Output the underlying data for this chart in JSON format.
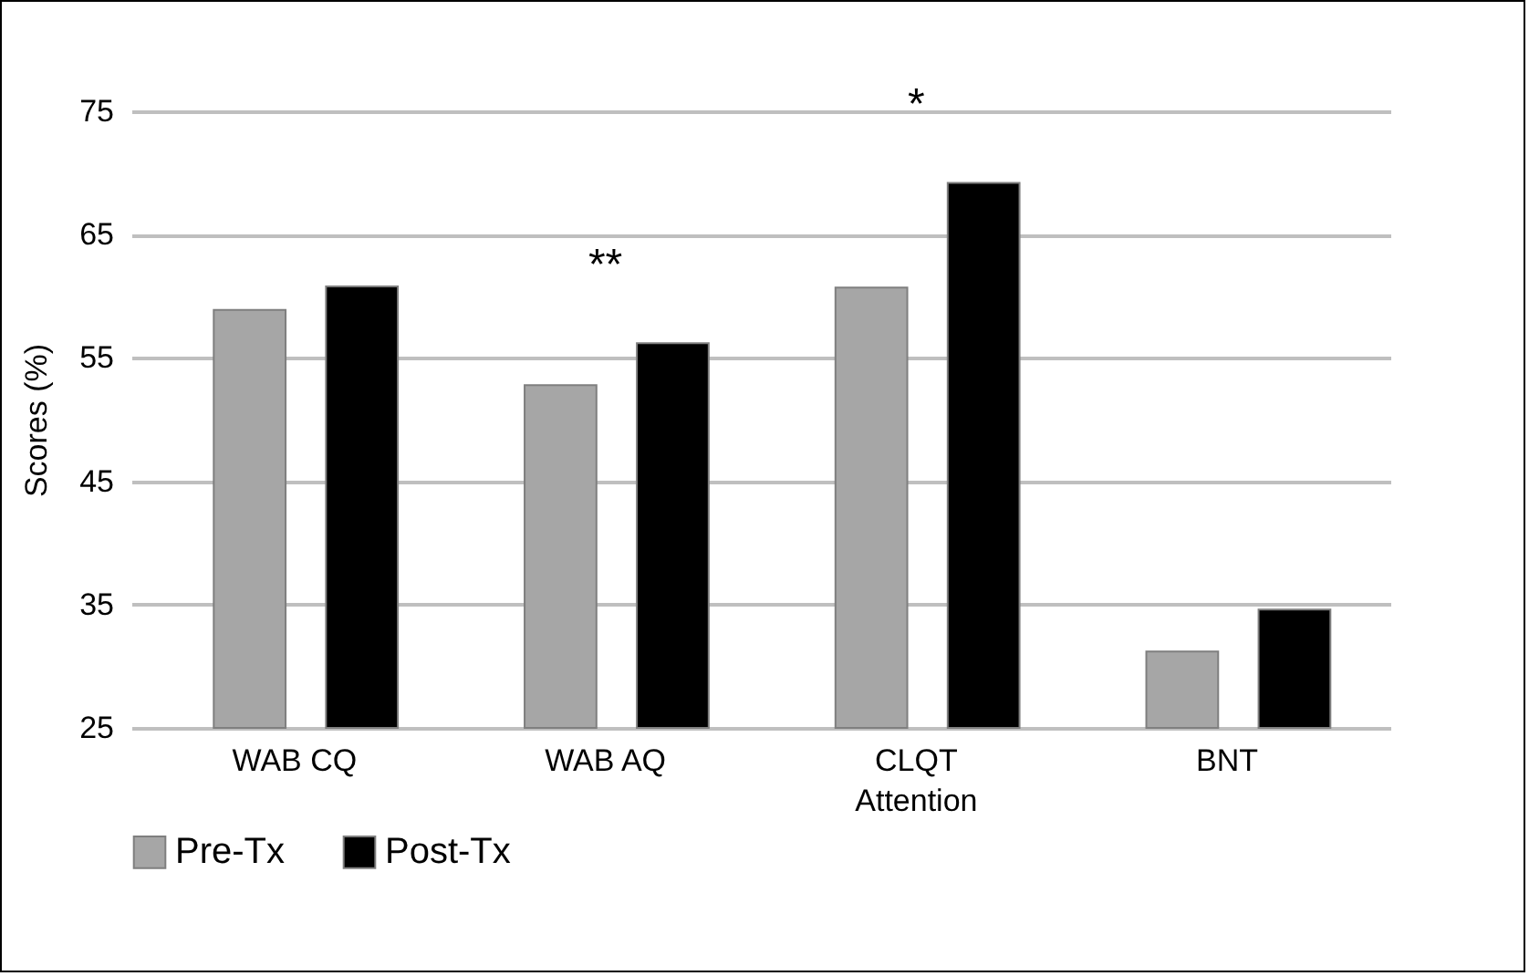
{
  "chart_data": {
    "type": "bar",
    "ylabel": "Scores (%)",
    "categories": [
      "WAB CQ",
      "WAB AQ",
      "CLQT Attention",
      "BNT"
    ],
    "series": [
      {
        "name": "Pre-Tx",
        "color": "#a6a6a6",
        "values": [
          58.9,
          52.8,
          60.7,
          31.2
        ]
      },
      {
        "name": "Post-Tx",
        "color": "#000000",
        "values": [
          60.8,
          56.2,
          69.2,
          34.6
        ]
      }
    ],
    "ylim": [
      25,
      75
    ],
    "yticks": [
      25,
      35,
      45,
      55,
      65,
      75
    ],
    "grid": "y",
    "legend": "bottom",
    "annotations": [
      "**",
      "*"
    ]
  }
}
